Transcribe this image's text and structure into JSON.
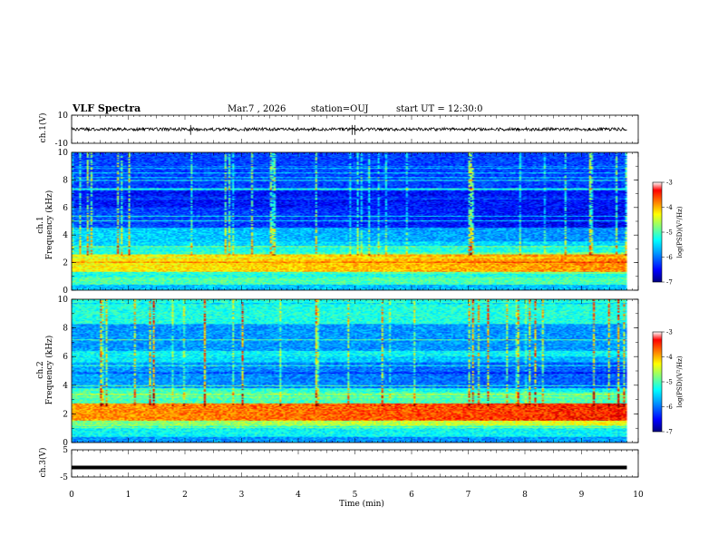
{
  "header": {
    "title": "VLF Spectra",
    "date": "Mar.7 , 2026",
    "station": "station=OUJ",
    "start_ut": "start UT =  12:30:0"
  },
  "chart_data": {
    "type": "heatmap",
    "x": {
      "label": "Time (min)",
      "range": [
        0,
        10
      ],
      "ticks": [
        "0",
        "1",
        "2",
        "3",
        "4",
        "5",
        "6",
        "7",
        "8",
        "9",
        "10"
      ],
      "data_end_min": 9.8
    },
    "panels": [
      {
        "id": "ch1-waveform",
        "type": "line",
        "ylabel": "ch.1(V)",
        "ylim": [
          -10,
          10
        ],
        "yticks": [
          "10",
          "-10"
        ],
        "baseline_v": 0,
        "color": "#000000"
      },
      {
        "id": "ch1-spectrogram",
        "type": "heatmap",
        "ylabel_channel": "ch.1",
        "ylabel": "Frequency (kHz)",
        "ylim": [
          0,
          10
        ],
        "yticks": [
          "0",
          "2",
          "4",
          "6",
          "8",
          "10"
        ],
        "colorbar": {
          "label": "log(PSD)(V²/Hz)",
          "range": [
            -7,
            -3
          ],
          "ticks": [
            "-3",
            "-4",
            "-5",
            "-6",
            "-7"
          ]
        },
        "bands_khz": [
          {
            "from": 0,
            "to": 0.4,
            "level": 0.35
          },
          {
            "from": 0.4,
            "to": 0.9,
            "level": 0.5
          },
          {
            "from": 0.9,
            "to": 1.3,
            "level": 0.45
          },
          {
            "from": 1.3,
            "to": 2.6,
            "level": 0.68
          },
          {
            "from": 2.6,
            "to": 3.2,
            "level": 0.45
          },
          {
            "from": 3.2,
            "to": 4.5,
            "level": 0.38
          },
          {
            "from": 4.5,
            "to": 6.0,
            "level": 0.22
          },
          {
            "from": 6.0,
            "to": 7.2,
            "level": 0.14
          },
          {
            "from": 7.2,
            "to": 10,
            "level": 0.2
          }
        ]
      },
      {
        "id": "ch2-spectrogram",
        "type": "heatmap",
        "ylabel_channel": "ch.2",
        "ylabel": "Frequency (kHz)",
        "ylim": [
          0,
          10
        ],
        "yticks": [
          "0",
          "2",
          "4",
          "6",
          "8",
          "10"
        ],
        "colorbar": {
          "label": "log(PSD)(V²/Hz)",
          "range": [
            -7,
            -3
          ],
          "ticks": [
            "-3",
            "-4",
            "-5",
            "-6",
            "-7"
          ]
        },
        "bands_khz": [
          {
            "from": 0,
            "to": 0.4,
            "level": 0.3
          },
          {
            "from": 0.4,
            "to": 1.0,
            "level": 0.42
          },
          {
            "from": 1.0,
            "to": 1.5,
            "level": 0.55
          },
          {
            "from": 1.5,
            "to": 2.7,
            "level": 0.78
          },
          {
            "from": 2.7,
            "to": 3.8,
            "level": 0.5
          },
          {
            "from": 3.8,
            "to": 5.6,
            "level": 0.32
          },
          {
            "from": 5.6,
            "to": 6.4,
            "level": 0.42
          },
          {
            "from": 6.4,
            "to": 8.3,
            "level": 0.3
          },
          {
            "from": 8.3,
            "to": 10,
            "level": 0.45
          }
        ]
      },
      {
        "id": "ch3-waveform",
        "type": "line",
        "ylabel": "ch.3(V)",
        "ylim": [
          -5,
          5
        ],
        "yticks": [
          "5",
          "-5"
        ],
        "baseline_v": -1.5,
        "color": "#000000"
      }
    ]
  },
  "colors": {
    "colormap": [
      "#000080",
      "#0000ff",
      "#00a0ff",
      "#00ffff",
      "#80ff80",
      "#ffff00",
      "#ff8000",
      "#ff0000",
      "#800000"
    ]
  }
}
